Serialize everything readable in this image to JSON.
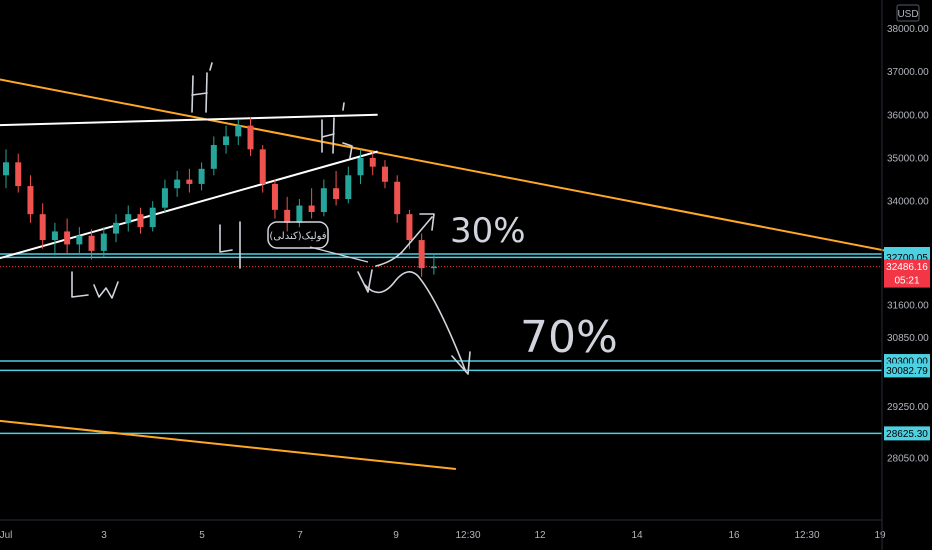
{
  "chart_data": {
    "type": "candlestick",
    "currency": "USD",
    "x_ticks": [
      "Jul",
      "3",
      "5",
      "7",
      "9",
      "12:30",
      "12",
      "14",
      "16",
      "12:30",
      "19"
    ],
    "y_ticks": [
      "38000.00",
      "37000.00",
      "36000.00",
      "35000.00",
      "34000.00",
      "31600.00",
      "30850.00",
      "29250.00",
      "28050.00"
    ],
    "ylim": [
      27700,
      38500
    ],
    "levels": [
      {
        "label": "32777.77",
        "value": 32777.77,
        "color": "#4dd0e1",
        "line": true
      },
      {
        "label": "32700.05",
        "value": 32700.05,
        "color": "#4dd0e1",
        "line": true
      },
      {
        "label": "30300.00",
        "value": 30300.0,
        "color": "#4dd0e1",
        "line": true
      },
      {
        "label": "30082.79",
        "value": 30082.79,
        "color": "#4dd0e1",
        "line": true
      },
      {
        "label": "28625.30",
        "value": 28625.3,
        "color": "#4dd0e1",
        "line": true
      }
    ],
    "last_price": {
      "value": "32486.16",
      "countdown": "05:21",
      "color": "#f23645"
    },
    "candle_colors": {
      "up": "#26a69a",
      "down": "#ef5350"
    },
    "candles": [
      {
        "t": 0.0,
        "o": 34600,
        "h": 35200,
        "l": 34300,
        "c": 34900
      },
      {
        "t": 0.25,
        "o": 34900,
        "h": 35100,
        "l": 34200,
        "c": 34350
      },
      {
        "t": 0.5,
        "o": 34350,
        "h": 34600,
        "l": 33500,
        "c": 33700
      },
      {
        "t": 0.75,
        "o": 33700,
        "h": 33950,
        "l": 32900,
        "c": 33100
      },
      {
        "t": 1.0,
        "o": 33100,
        "h": 33500,
        "l": 32750,
        "c": 33300
      },
      {
        "t": 1.25,
        "o": 33300,
        "h": 33600,
        "l": 32800,
        "c": 33000
      },
      {
        "t": 1.5,
        "o": 33000,
        "h": 33400,
        "l": 32750,
        "c": 33200
      },
      {
        "t": 1.75,
        "o": 33200,
        "h": 33350,
        "l": 32650,
        "c": 32850
      },
      {
        "t": 2.0,
        "o": 32850,
        "h": 33400,
        "l": 32700,
        "c": 33250
      },
      {
        "t": 2.25,
        "o": 33250,
        "h": 33700,
        "l": 33050,
        "c": 33500
      },
      {
        "t": 2.5,
        "o": 33500,
        "h": 33900,
        "l": 33300,
        "c": 33700
      },
      {
        "t": 2.75,
        "o": 33700,
        "h": 33850,
        "l": 33250,
        "c": 33400
      },
      {
        "t": 3.0,
        "o": 33400,
        "h": 34000,
        "l": 33300,
        "c": 33850
      },
      {
        "t": 3.25,
        "o": 33850,
        "h": 34500,
        "l": 33750,
        "c": 34300
      },
      {
        "t": 3.5,
        "o": 34300,
        "h": 34700,
        "l": 34100,
        "c": 34500
      },
      {
        "t": 3.75,
        "o": 34500,
        "h": 34750,
        "l": 34200,
        "c": 34400
      },
      {
        "t": 4.0,
        "o": 34400,
        "h": 34900,
        "l": 34250,
        "c": 34750
      },
      {
        "t": 4.25,
        "o": 34750,
        "h": 35500,
        "l": 34600,
        "c": 35300
      },
      {
        "t": 4.5,
        "o": 35300,
        "h": 35750,
        "l": 35100,
        "c": 35500
      },
      {
        "t": 4.75,
        "o": 35500,
        "h": 35900,
        "l": 35300,
        "c": 35750
      },
      {
        "t": 5.0,
        "o": 35750,
        "h": 35950,
        "l": 35050,
        "c": 35200
      },
      {
        "t": 5.25,
        "o": 35200,
        "h": 35300,
        "l": 34200,
        "c": 34400
      },
      {
        "t": 5.5,
        "o": 34400,
        "h": 34500,
        "l": 33600,
        "c": 33800
      },
      {
        "t": 5.75,
        "o": 33800,
        "h": 34100,
        "l": 33300,
        "c": 33500
      },
      {
        "t": 6.0,
        "o": 33500,
        "h": 34050,
        "l": 33400,
        "c": 33900
      },
      {
        "t": 6.25,
        "o": 33900,
        "h": 34300,
        "l": 33600,
        "c": 33750
      },
      {
        "t": 6.5,
        "o": 33750,
        "h": 34500,
        "l": 33650,
        "c": 34300
      },
      {
        "t": 6.75,
        "o": 34300,
        "h": 34700,
        "l": 33900,
        "c": 34050
      },
      {
        "t": 7.0,
        "o": 34050,
        "h": 34800,
        "l": 33950,
        "c": 34600
      },
      {
        "t": 7.25,
        "o": 34600,
        "h": 35200,
        "l": 34400,
        "c": 35000
      },
      {
        "t": 7.5,
        "o": 35000,
        "h": 35150,
        "l": 34600,
        "c": 34800
      },
      {
        "t": 7.75,
        "o": 34800,
        "h": 34950,
        "l": 34300,
        "c": 34450
      },
      {
        "t": 8.0,
        "o": 34450,
        "h": 34600,
        "l": 33500,
        "c": 33700
      },
      {
        "t": 8.25,
        "o": 33700,
        "h": 33800,
        "l": 32900,
        "c": 33100
      },
      {
        "t": 8.5,
        "o": 33100,
        "h": 33250,
        "l": 32250,
        "c": 32450
      },
      {
        "t": 8.75,
        "o": 32450,
        "h": 32750,
        "l": 32300,
        "c": 32486
      }
    ],
    "trendlines": [
      {
        "color": "#ffa726",
        "from": {
          "t": -2.1,
          "y": 37250
        },
        "to": {
          "t": 18.7,
          "y": 32700
        }
      },
      {
        "color": "#ffa726",
        "from": {
          "t": -2.1,
          "y": 29150
        },
        "to": {
          "t": 9.2,
          "y": 27800
        }
      },
      {
        "color": "#ffffff",
        "from": {
          "t": -2.1,
          "y": 35700
        },
        "to": {
          "t": 7.6,
          "y": 36000
        }
      },
      {
        "color": "#ffffff",
        "from": {
          "t": -2.1,
          "y": 32050
        },
        "to": {
          "t": 7.6,
          "y": 35150
        }
      }
    ],
    "annotations": {
      "callout": "فولیک(کندلی)",
      "up_pct": "30%",
      "down_pct": "70%",
      "h1": "H1",
      "h2": "H2",
      "l1": "L1",
      "l3": "L3"
    }
  }
}
